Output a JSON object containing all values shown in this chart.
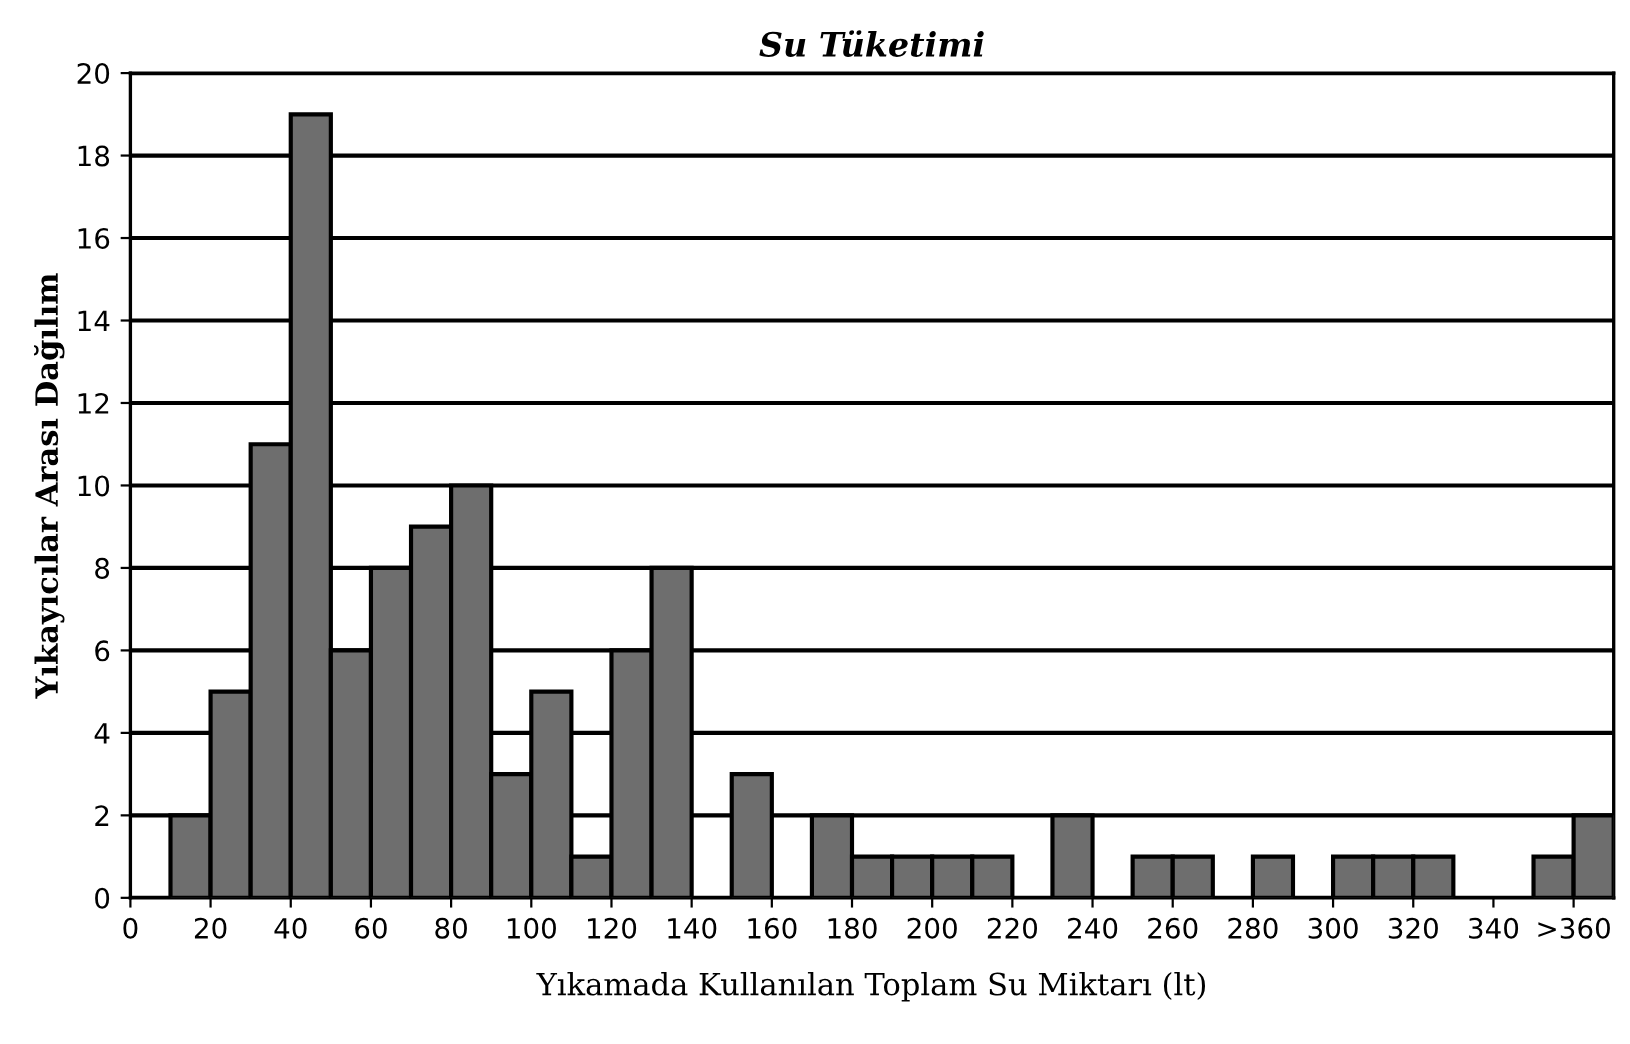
{
  "chart_data": {
    "type": "histogram",
    "title": "Su Tüketimi",
    "xlabel": "Yıkamada Kullanılan Toplam Su Miktarı (lt)",
    "ylabel": "Yıkayıcılar Arası Dağılım",
    "bins": [
      10,
      20,
      30,
      40,
      50,
      60,
      70,
      80,
      90,
      100,
      110,
      120,
      130,
      140,
      150,
      160,
      170,
      180,
      190,
      200,
      210,
      220,
      230,
      240,
      250,
      260,
      270,
      280,
      290,
      300,
      310,
      320,
      330,
      340,
      350,
      360,
      370
    ],
    "values": [
      2,
      5,
      11,
      19,
      6,
      8,
      9,
      10,
      3,
      5,
      1,
      6,
      8,
      0,
      3,
      0,
      2,
      1,
      1,
      1,
      1,
      0,
      2,
      0,
      1,
      1,
      0,
      1,
      0,
      1,
      1,
      1,
      0,
      0,
      1,
      2
    ],
    "color": "#6e6e6e",
    "xlim": [
      0,
      370
    ],
    "ylim": [
      0,
      20
    ],
    "xticks": [
      0,
      20,
      40,
      60,
      80,
      100,
      120,
      140,
      160,
      180,
      200,
      220,
      240,
      260,
      280,
      300,
      320,
      340,
      {
        "value": 360,
        "label": ">360"
      }
    ],
    "yticks": [
      0,
      2,
      4,
      6,
      8,
      10,
      12,
      14,
      16,
      18,
      20
    ],
    "grid": "y"
  }
}
